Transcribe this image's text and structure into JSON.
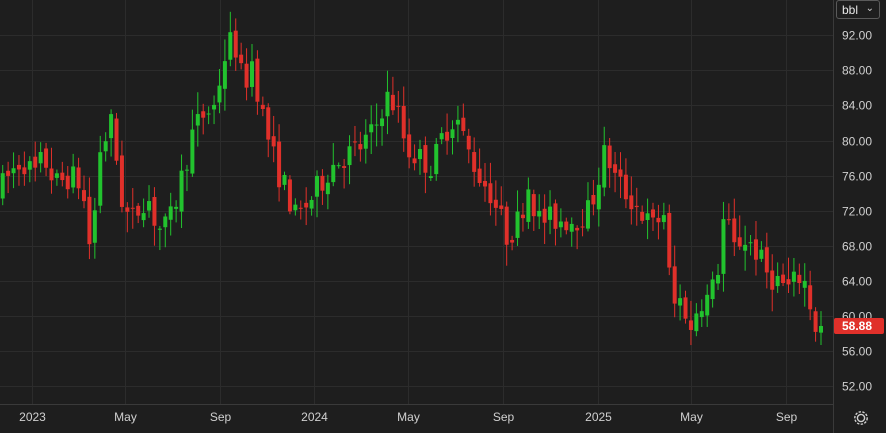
{
  "unit_selector": {
    "label": "bbl"
  },
  "icons": {
    "dropdown": "chevron-down-icon",
    "settings": "gear-icon"
  },
  "chart_data": {
    "type": "candlestick",
    "ylim": [
      50,
      96
    ],
    "y_ticks": [
      52,
      56,
      60,
      64,
      68,
      72,
      76,
      80,
      84,
      88,
      92
    ],
    "y_tick_labels": [
      "52.00",
      "56.00",
      "60.00",
      "64.00",
      "68.00",
      "72.00",
      "76.00",
      "80.00",
      "84.00",
      "88.00",
      "92.00"
    ],
    "x_ticks": [
      {
        "label": "2023",
        "date": "2023-01-01"
      },
      {
        "label": "May",
        "date": "2023-05-01"
      },
      {
        "label": "Sep",
        "date": "2023-09-01"
      },
      {
        "label": "2024",
        "date": "2024-01-01"
      },
      {
        "label": "May",
        "date": "2024-05-01"
      },
      {
        "label": "Sep",
        "date": "2024-09-01"
      },
      {
        "label": "2025",
        "date": "2025-01-01"
      },
      {
        "label": "May",
        "date": "2025-05-01"
      },
      {
        "label": "Sep",
        "date": "2025-09-01"
      }
    ],
    "x_range": [
      "2022-11-21",
      "2025-11-01"
    ],
    "last_price": 58.88,
    "last_price_label": "58.88",
    "grid": true,
    "colors": {
      "up": "#22c32e",
      "down": "#e0302a",
      "last_price_bg": "#e0302a",
      "grid": "#2c2c2c",
      "axis_text": "#d0d0d0"
    },
    "trend_anchors": [
      [
        "2022-11-21",
        74
      ],
      [
        "2022-12-06",
        76
      ],
      [
        "2022-12-23",
        78
      ],
      [
        "2023-01-07",
        76
      ],
      [
        "2023-01-20",
        78
      ],
      [
        "2023-02-05",
        75
      ],
      [
        "2023-02-22",
        76
      ],
      [
        "2023-03-10",
        75
      ],
      [
        "2023-03-22",
        67
      ],
      [
        "2023-04-03",
        79
      ],
      [
        "2023-04-18",
        82
      ],
      [
        "2023-05-03",
        72
      ],
      [
        "2023-05-15",
        71
      ],
      [
        "2023-06-02",
        74
      ],
      [
        "2023-06-16",
        70
      ],
      [
        "2023-06-30",
        70
      ],
      [
        "2023-07-15",
        75
      ],
      [
        "2023-08-01",
        81
      ],
      [
        "2023-08-15",
        83
      ],
      [
        "2023-08-30",
        84
      ],
      [
        "2023-09-08",
        89
      ],
      [
        "2023-09-22",
        92
      ],
      [
        "2023-10-05",
        86
      ],
      [
        "2023-10-16",
        89
      ],
      [
        "2023-11-01",
        82
      ],
      [
        "2023-11-16",
        77
      ],
      [
        "2023-12-01",
        74
      ],
      [
        "2023-12-12",
        71
      ],
      [
        "2024-01-05",
        74
      ],
      [
        "2024-01-25",
        77
      ],
      [
        "2024-02-08",
        78
      ],
      [
        "2024-03-01",
        79
      ],
      [
        "2024-03-22",
        81
      ],
      [
        "2024-04-05",
        85
      ],
      [
        "2024-04-19",
        84
      ],
      [
        "2024-05-03",
        79
      ],
      [
        "2024-05-20",
        78
      ],
      [
        "2024-06-05",
        77
      ],
      [
        "2024-06-20",
        81
      ],
      [
        "2024-07-05",
        83
      ],
      [
        "2024-07-20",
        79
      ],
      [
        "2024-08-05",
        76
      ],
      [
        "2024-08-20",
        74
      ],
      [
        "2024-09-10",
        69
      ],
      [
        "2024-09-25",
        71
      ],
      [
        "2024-10-07",
        75
      ],
      [
        "2024-10-20",
        71
      ],
      [
        "2024-11-06",
        71
      ],
      [
        "2024-11-20",
        71
      ],
      [
        "2024-12-05",
        71
      ],
      [
        "2024-12-25",
        72
      ],
      [
        "2025-01-15",
        79
      ],
      [
        "2025-01-25",
        76
      ],
      [
        "2025-02-10",
        74
      ],
      [
        "2025-03-01",
        72
      ],
      [
        "2025-03-15",
        70
      ],
      [
        "2025-04-01",
        72
      ],
      [
        "2025-04-10",
        61
      ],
      [
        "2025-04-25",
        62
      ],
      [
        "2025-05-05",
        58
      ],
      [
        "2025-05-15",
        62
      ],
      [
        "2025-05-30",
        62
      ],
      [
        "2025-06-10",
        66
      ],
      [
        "2025-06-20",
        74
      ],
      [
        "2025-06-25",
        67
      ],
      [
        "2025-07-10",
        69
      ],
      [
        "2025-07-25",
        68
      ],
      [
        "2025-08-10",
        65
      ],
      [
        "2025-08-25",
        64
      ],
      [
        "2025-09-10",
        63
      ],
      [
        "2025-09-25",
        65
      ],
      [
        "2025-10-05",
        62
      ],
      [
        "2025-10-10",
        59
      ],
      [
        "2025-10-13",
        58.88
      ]
    ]
  }
}
